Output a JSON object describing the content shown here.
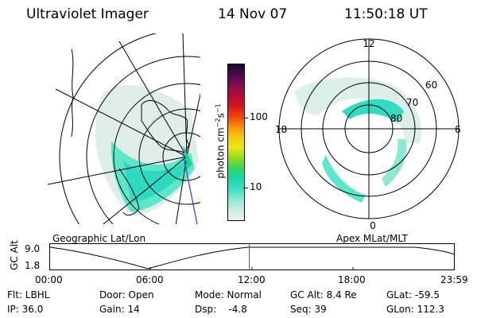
{
  "header": {
    "title": "Ultraviolet Imager",
    "date": "14 Nov 07",
    "time": "11:50:18 UT"
  },
  "maps": {
    "left_label": "Geographic Lat/Lon",
    "right_label": "Apex MLat/MLT",
    "polar_mlt_labels": [
      "12",
      "18",
      "6",
      "0"
    ],
    "polar_lat_labels": [
      "60",
      "70",
      "80"
    ]
  },
  "colorbar": {
    "label_main": "photon cm",
    "label_sup1": "−2",
    "label_mid": "s",
    "label_sup2": "−1",
    "ticks": [
      "100",
      "10"
    ],
    "colors": [
      "#e8f5ef",
      "#c9ede0",
      "#8ee8d2",
      "#3de0c8",
      "#18d6a8",
      "#30d860",
      "#9bd81a",
      "#e9e911",
      "#f7c80c",
      "#f8900a",
      "#f0440c",
      "#d8141c",
      "#b00c3c",
      "#860c52",
      "#4c0a50",
      "#1c0430"
    ]
  },
  "timeline": {
    "ylabel": "GC Alt",
    "yticks": [
      "9.0",
      "1.8"
    ],
    "xticks": [
      "00:00",
      "06:00",
      "12:00",
      "18:00",
      "23:59"
    ],
    "current_marker_hour": 11.84,
    "marker_color": "#cc2222"
  },
  "info": {
    "flt": "Flt: LBHL",
    "ip": "IP: 36.0",
    "door": "Door: Open",
    "gain": "Gain: 14",
    "mode": "Mode: Normal",
    "dsp": "Dsp:    -4.8",
    "gcalt": "GC Alt: 8.4 Re",
    "seq": "Seq: 39",
    "glat": "GLat: -59.5",
    "glon": "GLon: 112.3"
  }
}
